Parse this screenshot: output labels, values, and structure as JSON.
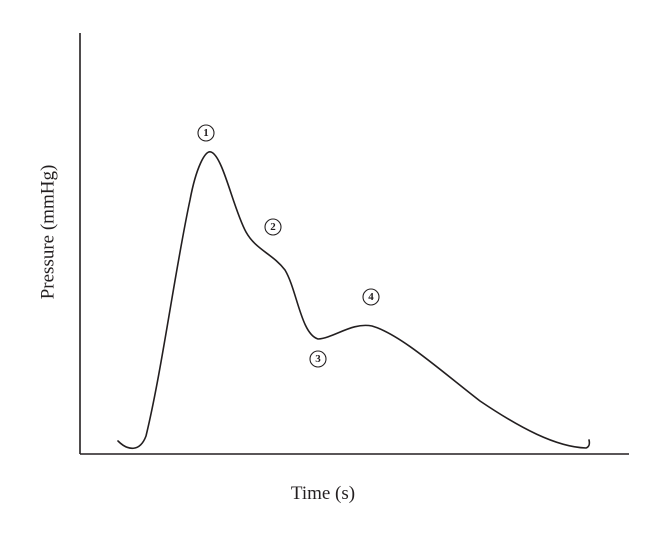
{
  "chart_data": {
    "type": "line",
    "title": "",
    "xlabel": "Time (s)",
    "ylabel": "Pressure (mmHg)",
    "grid": false,
    "legend": "none",
    "axis_ticks": "none",
    "line_color": "#231f20",
    "annotations": [
      {
        "label": "1",
        "point": "peak"
      },
      {
        "label": "2",
        "point": "shoulder"
      },
      {
        "label": "3",
        "point": "notch"
      },
      {
        "label": "4",
        "point": "secondary-peak"
      }
    ]
  }
}
